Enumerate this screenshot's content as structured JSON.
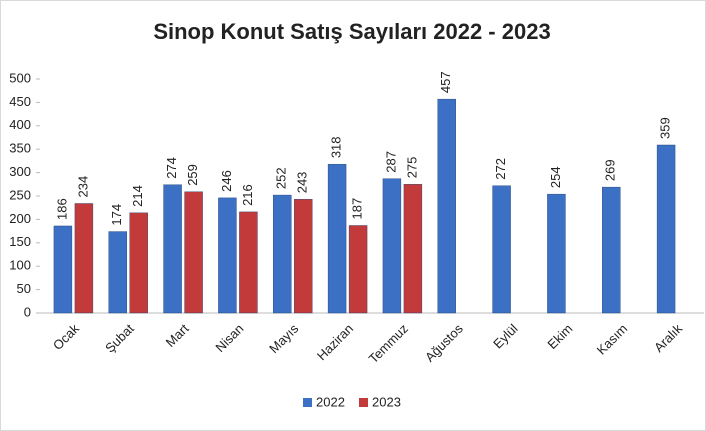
{
  "chart_data": {
    "type": "bar",
    "title": "Sinop Konut Satış Sayıları  2022 - 2023",
    "categories": [
      "Ocak",
      "Şubat",
      "Mart",
      "Nisan",
      "Mayıs",
      "Haziran",
      "Temmuz",
      "Ağustos",
      "Eylül",
      "Ekim",
      "Kasım",
      "Aralık"
    ],
    "series": [
      {
        "name": "2022",
        "color": "#3b70c4",
        "values": [
          186,
          174,
          274,
          246,
          252,
          318,
          287,
          457,
          272,
          254,
          269,
          359
        ]
      },
      {
        "name": "2023",
        "color": "#c33a3a",
        "values": [
          234,
          214,
          259,
          216,
          243,
          187,
          275,
          null,
          null,
          null,
          null,
          null
        ]
      }
    ],
    "ylim": [
      0,
      500
    ],
    "yticks": [
      0,
      50,
      100,
      150,
      200,
      250,
      300,
      350,
      400,
      450,
      500
    ],
    "legend": "bottom"
  }
}
